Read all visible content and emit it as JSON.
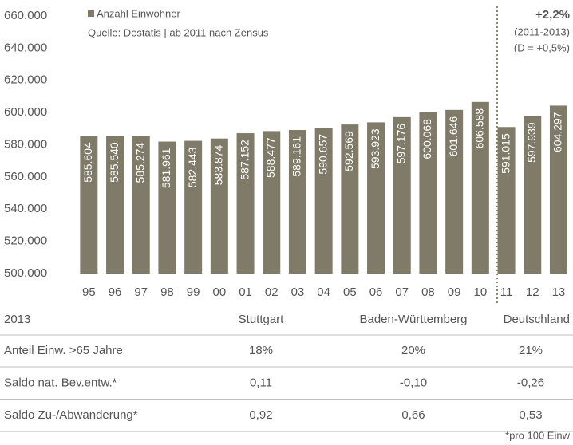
{
  "chart_data": {
    "type": "bar",
    "legend": "Anzahl Einwohner",
    "subtitle": "Quelle: Destatis | ab 2011 nach Zensus",
    "annotations": [
      "+2,2%",
      "(2011-2013)",
      "(D = +0,5%)"
    ],
    "categories": [
      "95",
      "96",
      "97",
      "98",
      "99",
      "00",
      "01",
      "02",
      "03",
      "04",
      "05",
      "06",
      "07",
      "08",
      "09",
      "10",
      "11",
      "12",
      "13"
    ],
    "values": [
      585604,
      585540,
      585274,
      581961,
      582443,
      583874,
      587152,
      588477,
      589161,
      590657,
      592569,
      593923,
      597176,
      600068,
      601646,
      606588,
      591015,
      597939,
      604297
    ],
    "value_labels": [
      "585.604",
      "585.540",
      "585.274",
      "581.961",
      "582.443",
      "583.874",
      "587.152",
      "588.477",
      "589.161",
      "590.657",
      "592.569",
      "593.923",
      "597.176",
      "600.068",
      "601.646",
      "606.588",
      "591.015",
      "597.939",
      "604.297"
    ],
    "color": "#7f7b68",
    "ylim": [
      500000,
      660000
    ],
    "yticks": [
      {
        "value": 500000,
        "label": "500.000"
      },
      {
        "value": 520000,
        "label": "520.000"
      },
      {
        "value": 540000,
        "label": "540.000"
      },
      {
        "value": 560000,
        "label": "560.000"
      },
      {
        "value": 580000,
        "label": "580.000"
      },
      {
        "value": 600000,
        "label": "600.000"
      },
      {
        "value": 620000,
        "label": "620.000"
      },
      {
        "value": 640000,
        "label": "640.000"
      },
      {
        "value": 660000,
        "label": "660.000"
      }
    ],
    "grid": false
  },
  "table": {
    "header": [
      "2013",
      "Stuttgart",
      "Baden-Württemberg",
      "Deutschland"
    ],
    "rows": [
      [
        "Anteil Einw. >65 Jahre",
        "18%",
        "20%",
        "21%"
      ],
      [
        "Saldo nat. Bev.entw.*",
        "0,11",
        "-0,10",
        "-0,26"
      ],
      [
        "Saldo Zu-/Abwanderung*",
        "0,92",
        "0,66",
        "0,53"
      ]
    ]
  },
  "footnote": "*pro 100 Einw"
}
